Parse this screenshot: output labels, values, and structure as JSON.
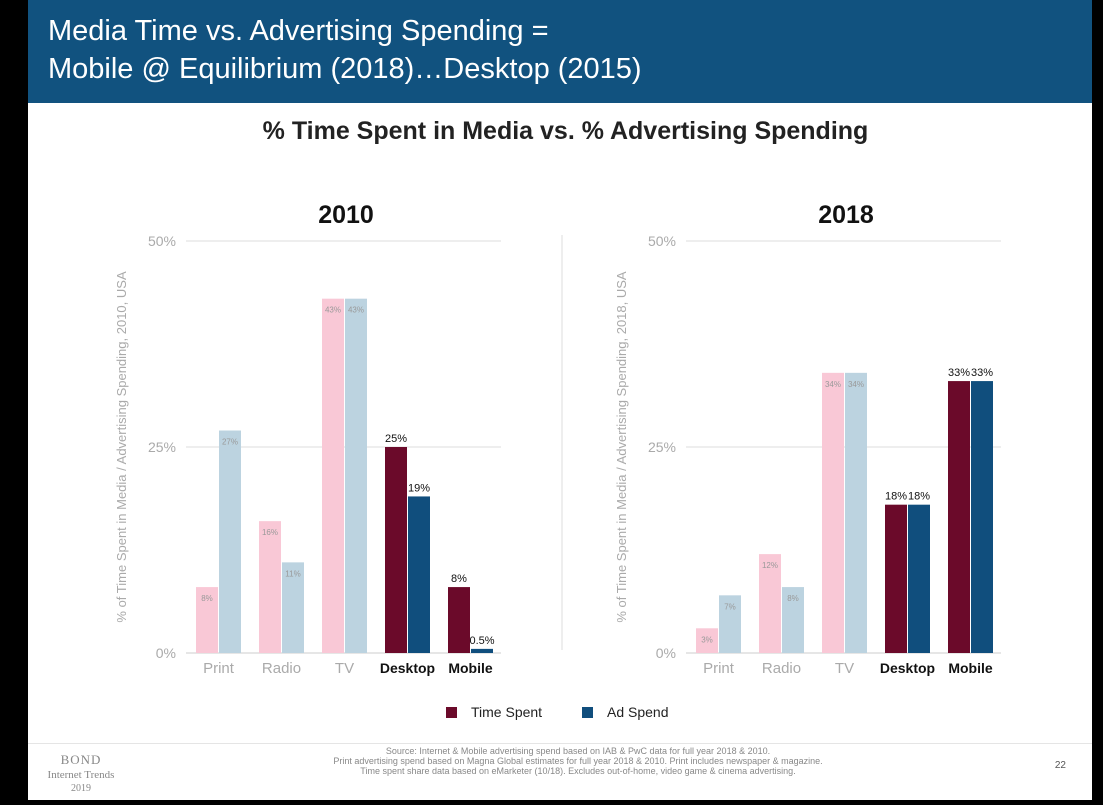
{
  "header": {
    "title_line1": "Media Time vs. Advertising Spending =",
    "title_line2": "Mobile @ Equilibrium (2018)…Desktop (2015)"
  },
  "subtitle": "% Time Spent in Media vs. % Advertising Spending",
  "colors": {
    "header_bg": "#11527f",
    "time_light": "#f9c8d6",
    "spend_light": "#bcd3e0",
    "time_dark": "#6b0a2a",
    "spend_dark": "#104e7d"
  },
  "chart_data": [
    {
      "type": "bar",
      "title": "2010",
      "ylabel": "% of Time Spent in Media / Advertising Spending, 2010, USA",
      "ylim": [
        0,
        50
      ],
      "yticks": [
        "0%",
        "25%",
        "50%"
      ],
      "categories": [
        "Print",
        "Radio",
        "TV",
        "Desktop",
        "Mobile"
      ],
      "highlight": [
        "Desktop",
        "Mobile"
      ],
      "grid": true,
      "series": [
        {
          "name": "Time Spent",
          "values": [
            8,
            16,
            43,
            25,
            8
          ],
          "labels": [
            "8%",
            "16%",
            "43%",
            "25%",
            "8%"
          ]
        },
        {
          "name": "Ad Spend",
          "values": [
            27,
            11,
            43,
            19,
            0.5
          ],
          "labels": [
            "27%",
            "11%",
            "43%",
            "19%",
            "0.5%"
          ]
        }
      ]
    },
    {
      "type": "bar",
      "title": "2018",
      "ylabel": "% of Time Spent in Media / Advertising Spending, 2018, USA",
      "ylim": [
        0,
        50
      ],
      "yticks": [
        "0%",
        "25%",
        "50%"
      ],
      "categories": [
        "Print",
        "Radio",
        "TV",
        "Desktop",
        "Mobile"
      ],
      "highlight": [
        "Desktop",
        "Mobile"
      ],
      "grid": true,
      "series": [
        {
          "name": "Time Spent",
          "values": [
            3,
            12,
            34,
            18,
            33
          ],
          "labels": [
            "3%",
            "12%",
            "34%",
            "18%",
            "33%"
          ]
        },
        {
          "name": "Ad Spend",
          "values": [
            7,
            8,
            34,
            18,
            33
          ],
          "labels": [
            "7%",
            "8%",
            "34%",
            "18%",
            "33%"
          ]
        }
      ]
    }
  ],
  "legend": [
    {
      "label": "Time Spent",
      "color": "#6b0a2a"
    },
    {
      "label": "Ad Spend",
      "color": "#104e7d"
    }
  ],
  "footer": {
    "brand_line1": "BOND",
    "brand_line2": "Internet Trends",
    "brand_line3": "2019",
    "source_line1": "Source: Internet & Mobile advertising spend based on IAB & PwC data for full year 2018 & 2010.",
    "source_line2": "Print advertising spend based on Magna Global estimates for full year 2018 & 2010. Print includes newspaper & magazine.",
    "source_line3": "Time spent share data based on eMarketer (10/18). Excludes out-of-home, video game & cinema advertising.",
    "page_number": "22"
  }
}
